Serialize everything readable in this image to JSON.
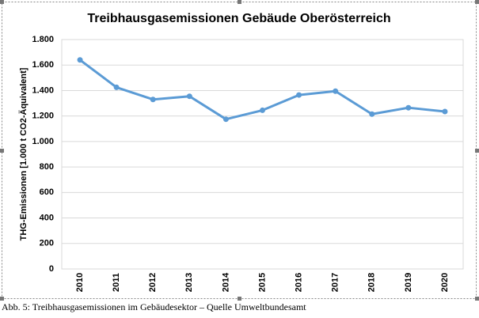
{
  "chart_data": {
    "type": "line",
    "title": "Treibhausgasemissionen Gebäude Oberösterreich",
    "ylabel": "THG-Emissionen  [1.000 t CO2-Äquivalent]",
    "categories": [
      "2010",
      "2011",
      "2012",
      "2013",
      "2014",
      "2015",
      "2016",
      "2017",
      "2018",
      "2019",
      "2020"
    ],
    "values": [
      1640,
      1425,
      1330,
      1355,
      1175,
      1245,
      1365,
      1395,
      1215,
      1265,
      1235
    ],
    "color": "#5b9bd5",
    "ylim": [
      0,
      1800
    ],
    "yticks": [
      0,
      200,
      400,
      600,
      800,
      {
        "value": 1000,
        "label": "1.000"
      },
      {
        "value": 1200,
        "label": "1.200"
      },
      {
        "value": 1400,
        "label": "1.400"
      },
      {
        "value": 1600,
        "label": "1.600"
      },
      {
        "value": 1800,
        "label": "1.800"
      }
    ],
    "grid": true
  },
  "caption": "Abb. 5: Treibhausgasemissionen im Gebäudesektor – Quelle Umweltbundesamt"
}
